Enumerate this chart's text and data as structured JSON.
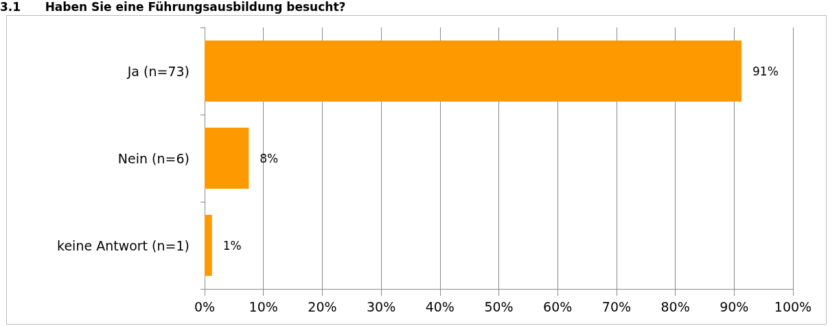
{
  "chart_data": {
    "type": "bar",
    "orientation": "horizontal",
    "title": "3.1      Haben Sie eine Führungsausbildung besucht?",
    "categories": [
      "Ja (n=73)",
      "Nein (n=6)",
      "keine Antwort (n=1)"
    ],
    "values": [
      91.25,
      7.5,
      1.25
    ],
    "color": "#ff9900",
    "value_labels": [
      "91%",
      "8%",
      "1%"
    ],
    "xlim": [
      0,
      100
    ],
    "xticks": [
      {
        "value": 0,
        "label": "0%"
      },
      {
        "value": 10,
        "label": "10%"
      },
      {
        "value": 20,
        "label": "20%"
      },
      {
        "value": 30,
        "label": "30%"
      },
      {
        "value": 40,
        "label": "40%"
      },
      {
        "value": 50,
        "label": "50%"
      },
      {
        "value": 60,
        "label": "60%"
      },
      {
        "value": 70,
        "label": "70%"
      },
      {
        "value": 80,
        "label": "80%"
      },
      {
        "value": 90,
        "label": "90%"
      },
      {
        "value": 100,
        "label": "100%"
      }
    ],
    "grid": "x"
  }
}
